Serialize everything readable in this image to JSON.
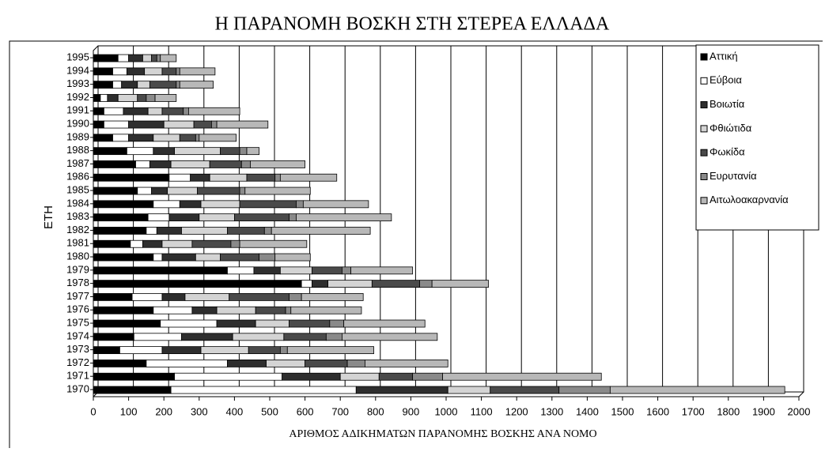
{
  "chart_data": {
    "type": "stacked-bar-horizontal",
    "title": "Η ΠΑΡΑΝΟΜΗ ΒΟΣΚΗ ΣΤΗ ΣΤΕΡΕΑ ΕΛΛΑΔΑ",
    "xlabel": "ΑΡΙΘΜΟΣ ΑΔΙΚΗΜΑΤΩΝ ΠΑΡΑΝΟΜΗΣ ΒΟΣΚΗΣ ΑΝΑ ΝΟΜΟ",
    "ylabel": "ΕΤΗ",
    "categories": [
      "1970",
      "1971",
      "1972",
      "1973",
      "1974",
      "1975",
      "1976",
      "1977",
      "1978",
      "1979",
      "1980",
      "1981",
      "1982",
      "1983",
      "1984",
      "1985",
      "1986",
      "1987",
      "1988",
      "1989",
      "1990",
      "1991",
      "1992",
      "1993",
      "1994",
      "1995"
    ],
    "series": [
      {
        "name": "Αττική",
        "color": "#000000",
        "values": [
          220,
          230,
          150,
          75,
          115,
          190,
          170,
          110,
          590,
          380,
          170,
          105,
          150,
          155,
          170,
          125,
          215,
          120,
          95,
          55,
          30,
          30,
          20,
          55,
          55,
          70
        ]
      },
      {
        "name": "Εύβοια",
        "color": "#ffffff",
        "values": [
          525,
          305,
          230,
          120,
          135,
          160,
          110,
          85,
          30,
          75,
          25,
          35,
          30,
          60,
          75,
          40,
          60,
          40,
          75,
          45,
          70,
          55,
          20,
          25,
          40,
          30
        ]
      },
      {
        "name": "Βοιωτία",
        "color": "#2e2e2e",
        "values": [
          260,
          165,
          110,
          110,
          145,
          110,
          70,
          65,
          45,
          75,
          95,
          55,
          70,
          85,
          60,
          45,
          55,
          60,
          60,
          70,
          100,
          70,
          30,
          45,
          50,
          40
        ]
      },
      {
        "name": "Φθιώτιδα",
        "color": "#d4d4d4",
        "values": [
          120,
          110,
          110,
          135,
          145,
          95,
          110,
          125,
          125,
          90,
          70,
          85,
          130,
          100,
          110,
          85,
          105,
          110,
          130,
          75,
          85,
          40,
          55,
          35,
          50,
          25
        ]
      },
      {
        "name": "Φωκίδα",
        "color": "#4a4a4a",
        "values": [
          195,
          95,
          120,
          90,
          120,
          115,
          85,
          170,
          135,
          85,
          110,
          110,
          105,
          155,
          160,
          120,
          80,
          90,
          55,
          45,
          50,
          60,
          25,
          75,
          40,
          15
        ]
      },
      {
        "name": "Ευρυτανία",
        "color": "#8a8a8a",
        "values": [
          145,
          85,
          50,
          20,
          45,
          40,
          15,
          35,
          35,
          25,
          45,
          25,
          20,
          20,
          20,
          15,
          15,
          25,
          20,
          10,
          15,
          15,
          25,
          10,
          10,
          10
        ]
      },
      {
        "name": "Αιτωλοακαρνανία",
        "color": "#b8b8b8",
        "values": [
          495,
          450,
          235,
          245,
          270,
          230,
          200,
          175,
          160,
          175,
          100,
          190,
          280,
          270,
          185,
          185,
          160,
          155,
          35,
          105,
          145,
          145,
          60,
          95,
          100,
          45
        ]
      }
    ],
    "xlim": [
      0,
      2000
    ],
    "xticks": [
      0,
      100,
      200,
      300,
      400,
      500,
      600,
      700,
      800,
      900,
      1000,
      1100,
      1200,
      1300,
      1400,
      1500,
      1600,
      1700,
      1800,
      1900,
      2000
    ],
    "grid": true,
    "legend": "top-right"
  }
}
